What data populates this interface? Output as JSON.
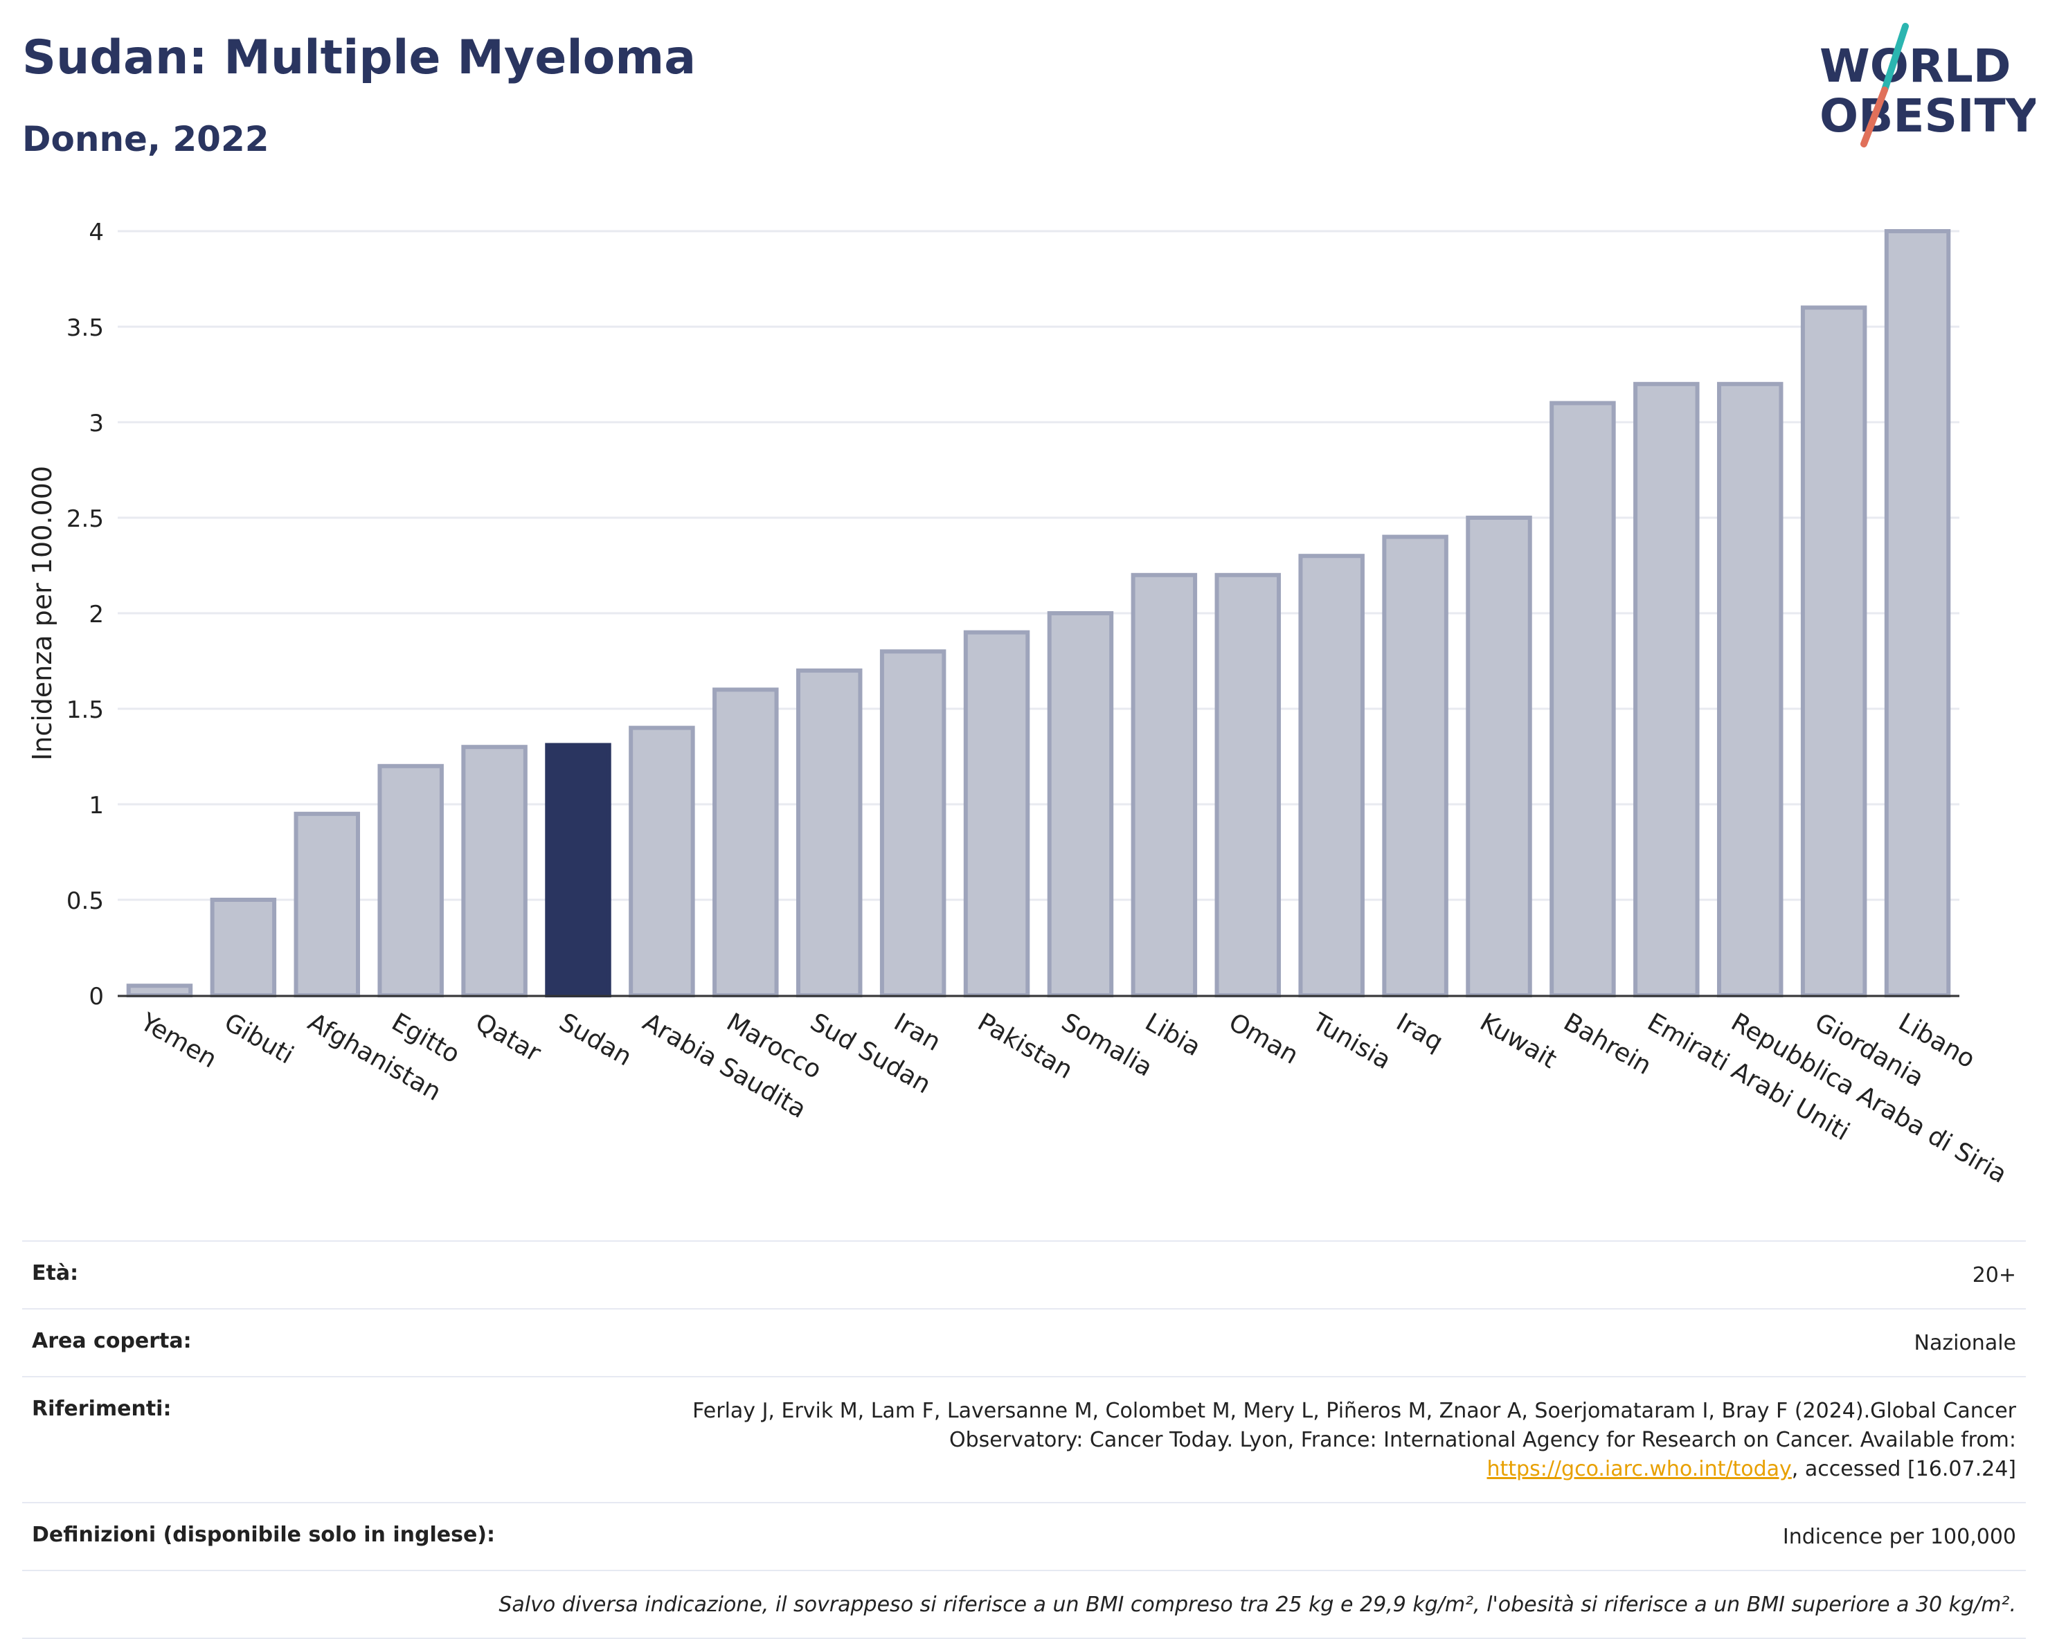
{
  "header": {
    "title": "Sudan: Multiple Myeloma",
    "subtitle": "Donne, 2022",
    "logo_line1": "WORLD",
    "logo_line2": "OBESITY"
  },
  "colors": {
    "highlight": "#2a3560",
    "bar": "#bfc3d0",
    "bar_stroke": "#9ea4bb",
    "grid": "#e8eaf0",
    "logo_teal": "#2bb5b0",
    "logo_red": "#e0705a"
  },
  "chart_data": {
    "type": "bar",
    "title": "Sudan: Multiple Myeloma",
    "subtitle": "Donne, 2022",
    "ylabel": "Incidenza per 100.000",
    "xlabel": "",
    "ylim": [
      0,
      4
    ],
    "yticks": [
      0,
      0.5,
      1,
      1.5,
      2,
      2.5,
      3,
      3.5,
      4
    ],
    "ytick_labels": [
      "0",
      "0.5",
      "1",
      "1.5",
      "2",
      "2.5",
      "3",
      "3.5",
      "4"
    ],
    "grid": true,
    "highlight": "Sudan",
    "categories": [
      "Yemen",
      "Gibuti",
      "Afghanistan",
      "Egitto",
      "Qatar",
      "Sudan",
      "Arabia Saudita",
      "Marocco",
      "Sud Sudan",
      "Iran",
      "Pakistan",
      "Somalia",
      "Libia",
      "Oman",
      "Tunisia",
      "Iraq",
      "Kuwait",
      "Bahrein",
      "Emirati Arabi Uniti",
      "Repubblica Araba di Siria",
      "Giordania",
      "Libano"
    ],
    "values": [
      0.05,
      0.5,
      0.95,
      1.2,
      1.3,
      1.31,
      1.4,
      1.6,
      1.7,
      1.8,
      1.9,
      2.0,
      2.2,
      2.2,
      2.3,
      2.4,
      2.5,
      3.1,
      3.2,
      3.2,
      3.6,
      4.0
    ]
  },
  "info": {
    "age_label": "Età:",
    "age_value": "20+",
    "area_label": "Area coperta:",
    "area_value": "Nazionale",
    "refs_label": "Riferimenti:",
    "refs_text_1": "Ferlay J, Ervik M, Lam F, Laversanne M, Colombet M, Mery L, Piñeros M, Znaor A, Soerjomataram I, Bray F (2024).Global Cancer Observatory: Cancer Today. Lyon, France: International Agency for Research on Cancer. Available from: ",
    "refs_link": "https://gco.iarc.who.int/today",
    "refs_text_2": ", accessed [16.07.24]",
    "defs_label": "Definizioni (disponibile solo in inglese):",
    "defs_value": "Indicence per 100,000",
    "note": "Salvo diversa indicazione, il sovrappeso si riferisce a un BMI compreso tra 25 kg e 29,9 kg/m², l'obesità si riferisce a un BMI superiore a 30 kg/m²."
  }
}
